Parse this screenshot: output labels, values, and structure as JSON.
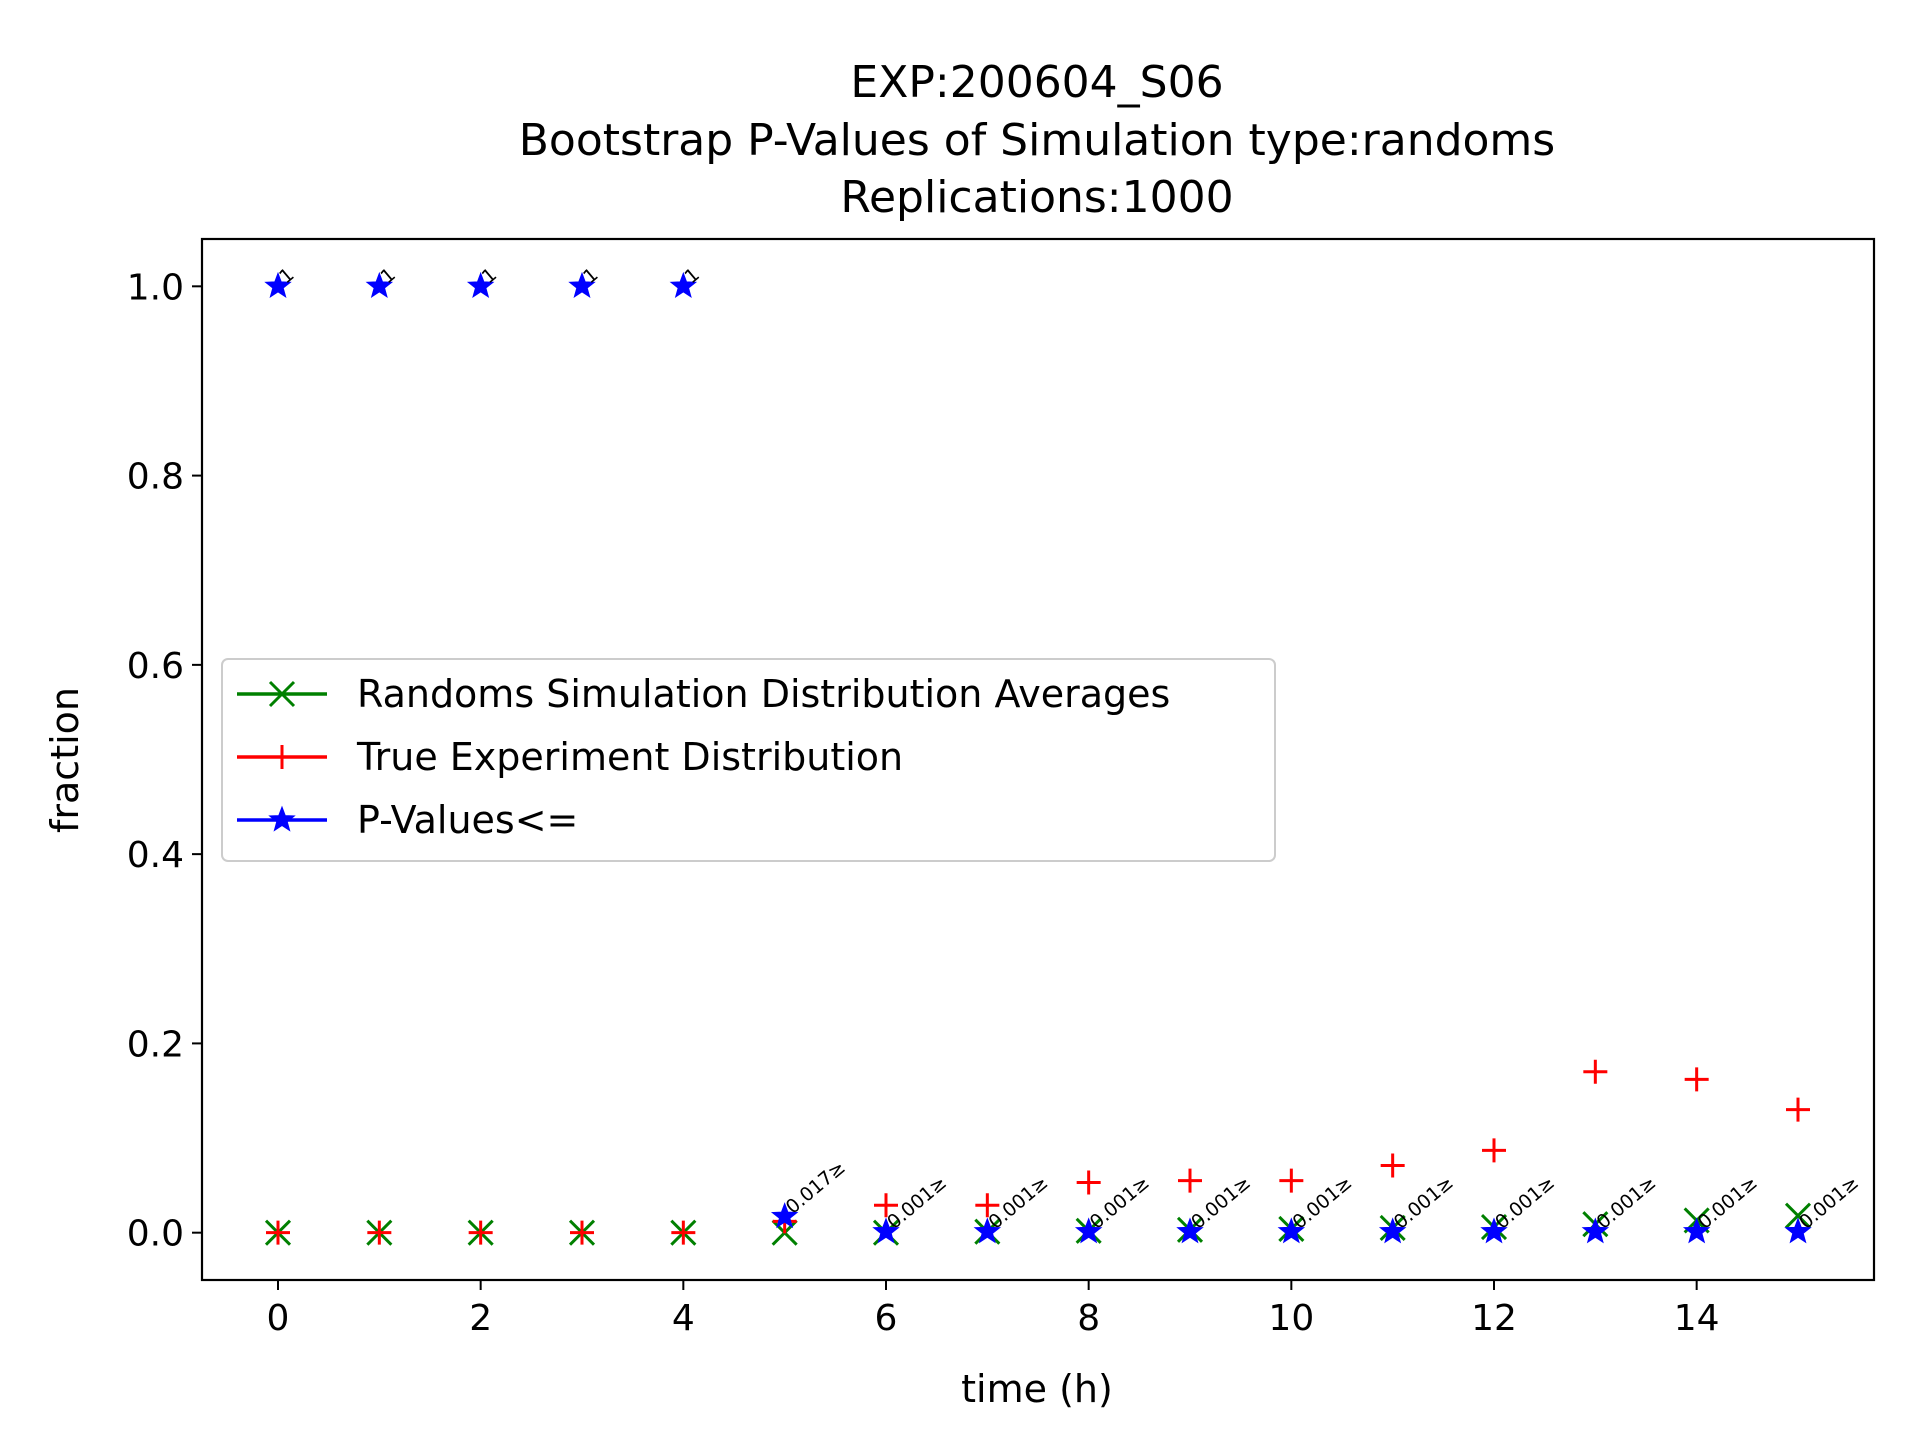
{
  "chart_data": {
    "type": "scatter",
    "title_lines": [
      "EXP:200604_S06",
      "Bootstrap P-Values of Simulation type:randoms",
      "Replications:1000"
    ],
    "xlabel": "time (h)",
    "ylabel": "fraction",
    "xlim": [
      -0.75,
      15.75
    ],
    "ylim": [
      -0.05,
      1.05
    ],
    "xticks": [
      0,
      2,
      4,
      6,
      8,
      10,
      12,
      14
    ],
    "xtick_labels": [
      "0",
      "2",
      "4",
      "6",
      "8",
      "10",
      "12",
      "14"
    ],
    "yticks": [
      0.0,
      0.2,
      0.4,
      0.6,
      0.8,
      1.0
    ],
    "ytick_labels": [
      "0.0",
      "0.2",
      "0.4",
      "0.6",
      "0.8",
      "1.0"
    ],
    "grid": false,
    "legend_position": "center-left",
    "x": [
      0,
      1,
      2,
      3,
      4,
      5,
      6,
      7,
      8,
      9,
      10,
      11,
      12,
      13,
      14,
      15
    ],
    "series": [
      {
        "name": "Randoms Simulation Distribution Averages",
        "marker": "x",
        "color": "#008000",
        "values": [
          0,
          0,
          0,
          0,
          0,
          0,
          0,
          0.001,
          0.002,
          0.003,
          0.004,
          0.005,
          0.006,
          0.009,
          0.013,
          0.018
        ]
      },
      {
        "name": "True Experiment Distribution",
        "marker": "plus",
        "color": "#ff0000",
        "values": [
          0,
          0,
          0,
          0,
          0,
          0.012,
          0.029,
          0.029,
          0.053,
          0.055,
          0.055,
          0.071,
          0.087,
          0.17,
          0.162,
          0.13
        ]
      },
      {
        "name": "P-Values<=",
        "marker": "star",
        "color": "#0000ff",
        "values": [
          1,
          1,
          1,
          1,
          1,
          0.017,
          0.001,
          0.001,
          0.001,
          0.001,
          0.001,
          0.001,
          0.001,
          0.001,
          0.001,
          0.001
        ],
        "annotations": [
          "1",
          "1",
          "1",
          "1",
          "1",
          "0.017≥",
          "0.001≥",
          "0.001≥",
          "0.001≥",
          "0.001≥",
          "0.001≥",
          "0.001≥",
          "0.001≥",
          "0.001≥",
          "0.001≥",
          "0.001≥"
        ]
      }
    ]
  }
}
